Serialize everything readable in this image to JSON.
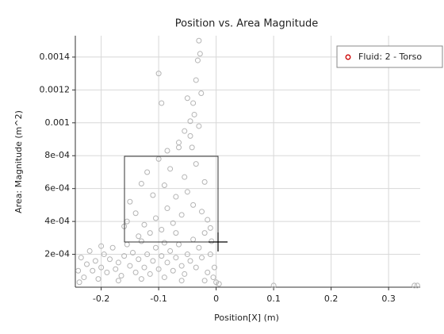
{
  "chart_data": {
    "type": "scatter",
    "title": "Position vs. Area Magnitude",
    "x_label": "Position[X] (m)",
    "y_label": "Area: Magnitude (m^2)",
    "xlim": [
      -0.245,
      0.355
    ],
    "ylim": [
      0,
      0.00153
    ],
    "xticks": [
      -0.2,
      -0.1,
      0,
      0.1,
      0.2,
      0.3
    ],
    "yticks": [
      {
        "value": 0.0002,
        "label": "2e-04"
      },
      {
        "value": 0.0004,
        "label": "4e-04"
      },
      {
        "value": 0.0006,
        "label": "6e-04"
      },
      {
        "value": 0.0008,
        "label": "8e-04"
      },
      0.001,
      0.0012,
      0.0014
    ],
    "grid": true,
    "legend_position": "upper right",
    "legend_marker_color": "#cc0000",
    "series": [
      {
        "name": "Fluid: 2 - Torso",
        "color": "#b4b4b4",
        "x": [
          -0.24,
          -0.235,
          -0.23,
          -0.225,
          -0.22,
          -0.215,
          -0.21,
          -0.205,
          -0.2,
          -0.195,
          -0.19,
          -0.185,
          -0.18,
          -0.175,
          -0.17,
          -0.165,
          -0.16,
          -0.155,
          -0.15,
          -0.145,
          -0.14,
          -0.135,
          -0.13,
          -0.125,
          -0.12,
          -0.115,
          -0.11,
          -0.105,
          -0.1,
          -0.095,
          -0.09,
          -0.085,
          -0.08,
          -0.075,
          -0.07,
          -0.065,
          -0.06,
          -0.055,
          -0.05,
          -0.045,
          -0.04,
          -0.035,
          -0.03,
          -0.025,
          -0.02,
          -0.015,
          -0.01,
          -0.005,
          0,
          -0.003,
          -0.238,
          -0.2,
          -0.17,
          -0.13,
          -0.09,
          -0.06,
          -0.02,
          -0.008,
          -0.16,
          -0.15,
          -0.14,
          -0.13,
          -0.125,
          -0.12,
          -0.11,
          -0.105,
          -0.1,
          -0.095,
          -0.09,
          -0.085,
          -0.08,
          -0.075,
          -0.07,
          -0.065,
          -0.06,
          -0.055,
          -0.05,
          -0.045,
          -0.04,
          -0.035,
          -0.03,
          -0.025,
          -0.02,
          -0.015,
          -0.01,
          -0.155,
          -0.135,
          -0.115,
          -0.085,
          -0.07,
          -0.04,
          -0.035,
          -0.032,
          -0.03,
          -0.028,
          -0.038,
          -0.026,
          -0.045,
          -0.05,
          -0.065,
          -0.095,
          -0.1,
          -0.055,
          -0.042,
          0.1,
          0.345,
          0.35,
          0.005
        ],
        "values": [
          0.0001,
          0.00018,
          6e-05,
          0.00014,
          0.00022,
          0.0001,
          0.00016,
          5e-05,
          0.00012,
          0.0002,
          9e-05,
          0.00017,
          0.00024,
          0.00011,
          0.00015,
          7e-05,
          0.00019,
          0.00026,
          0.00013,
          0.00021,
          9e-05,
          0.00017,
          0.00028,
          0.00012,
          0.0002,
          8e-05,
          0.00016,
          0.00024,
          0.00011,
          0.00019,
          6e-05,
          0.00015,
          0.00022,
          0.0001,
          0.00018,
          0.00026,
          0.00013,
          8e-05,
          0.0002,
          0.00016,
          0.00029,
          0.00012,
          0.00024,
          0.00018,
          0.00033,
          9e-05,
          0.0002,
          6e-05,
          3e-05,
          0.00012,
          3e-05,
          0.00025,
          4e-05,
          5e-05,
          0.00027,
          4e-05,
          4e-05,
          0.00028,
          0.00037,
          0.00052,
          0.00045,
          0.00063,
          0.00038,
          0.0007,
          0.00056,
          0.00042,
          0.00078,
          0.00035,
          0.00062,
          0.00048,
          0.00072,
          0.00039,
          0.00055,
          0.00085,
          0.00044,
          0.00067,
          0.00058,
          0.00092,
          0.0005,
          0.00075,
          0.00098,
          0.00046,
          0.00064,
          0.00041,
          0.00036,
          0.0004,
          0.00031,
          0.00033,
          0.00083,
          0.00033,
          0.00112,
          0.00126,
          0.00138,
          0.0015,
          0.00142,
          0.00105,
          0.00118,
          0.00101,
          0.00115,
          0.00088,
          0.00112,
          0.0013,
          0.00095,
          0.00085,
          1e-05,
          1e-05,
          1e-05,
          2e-05
        ]
      }
    ]
  }
}
